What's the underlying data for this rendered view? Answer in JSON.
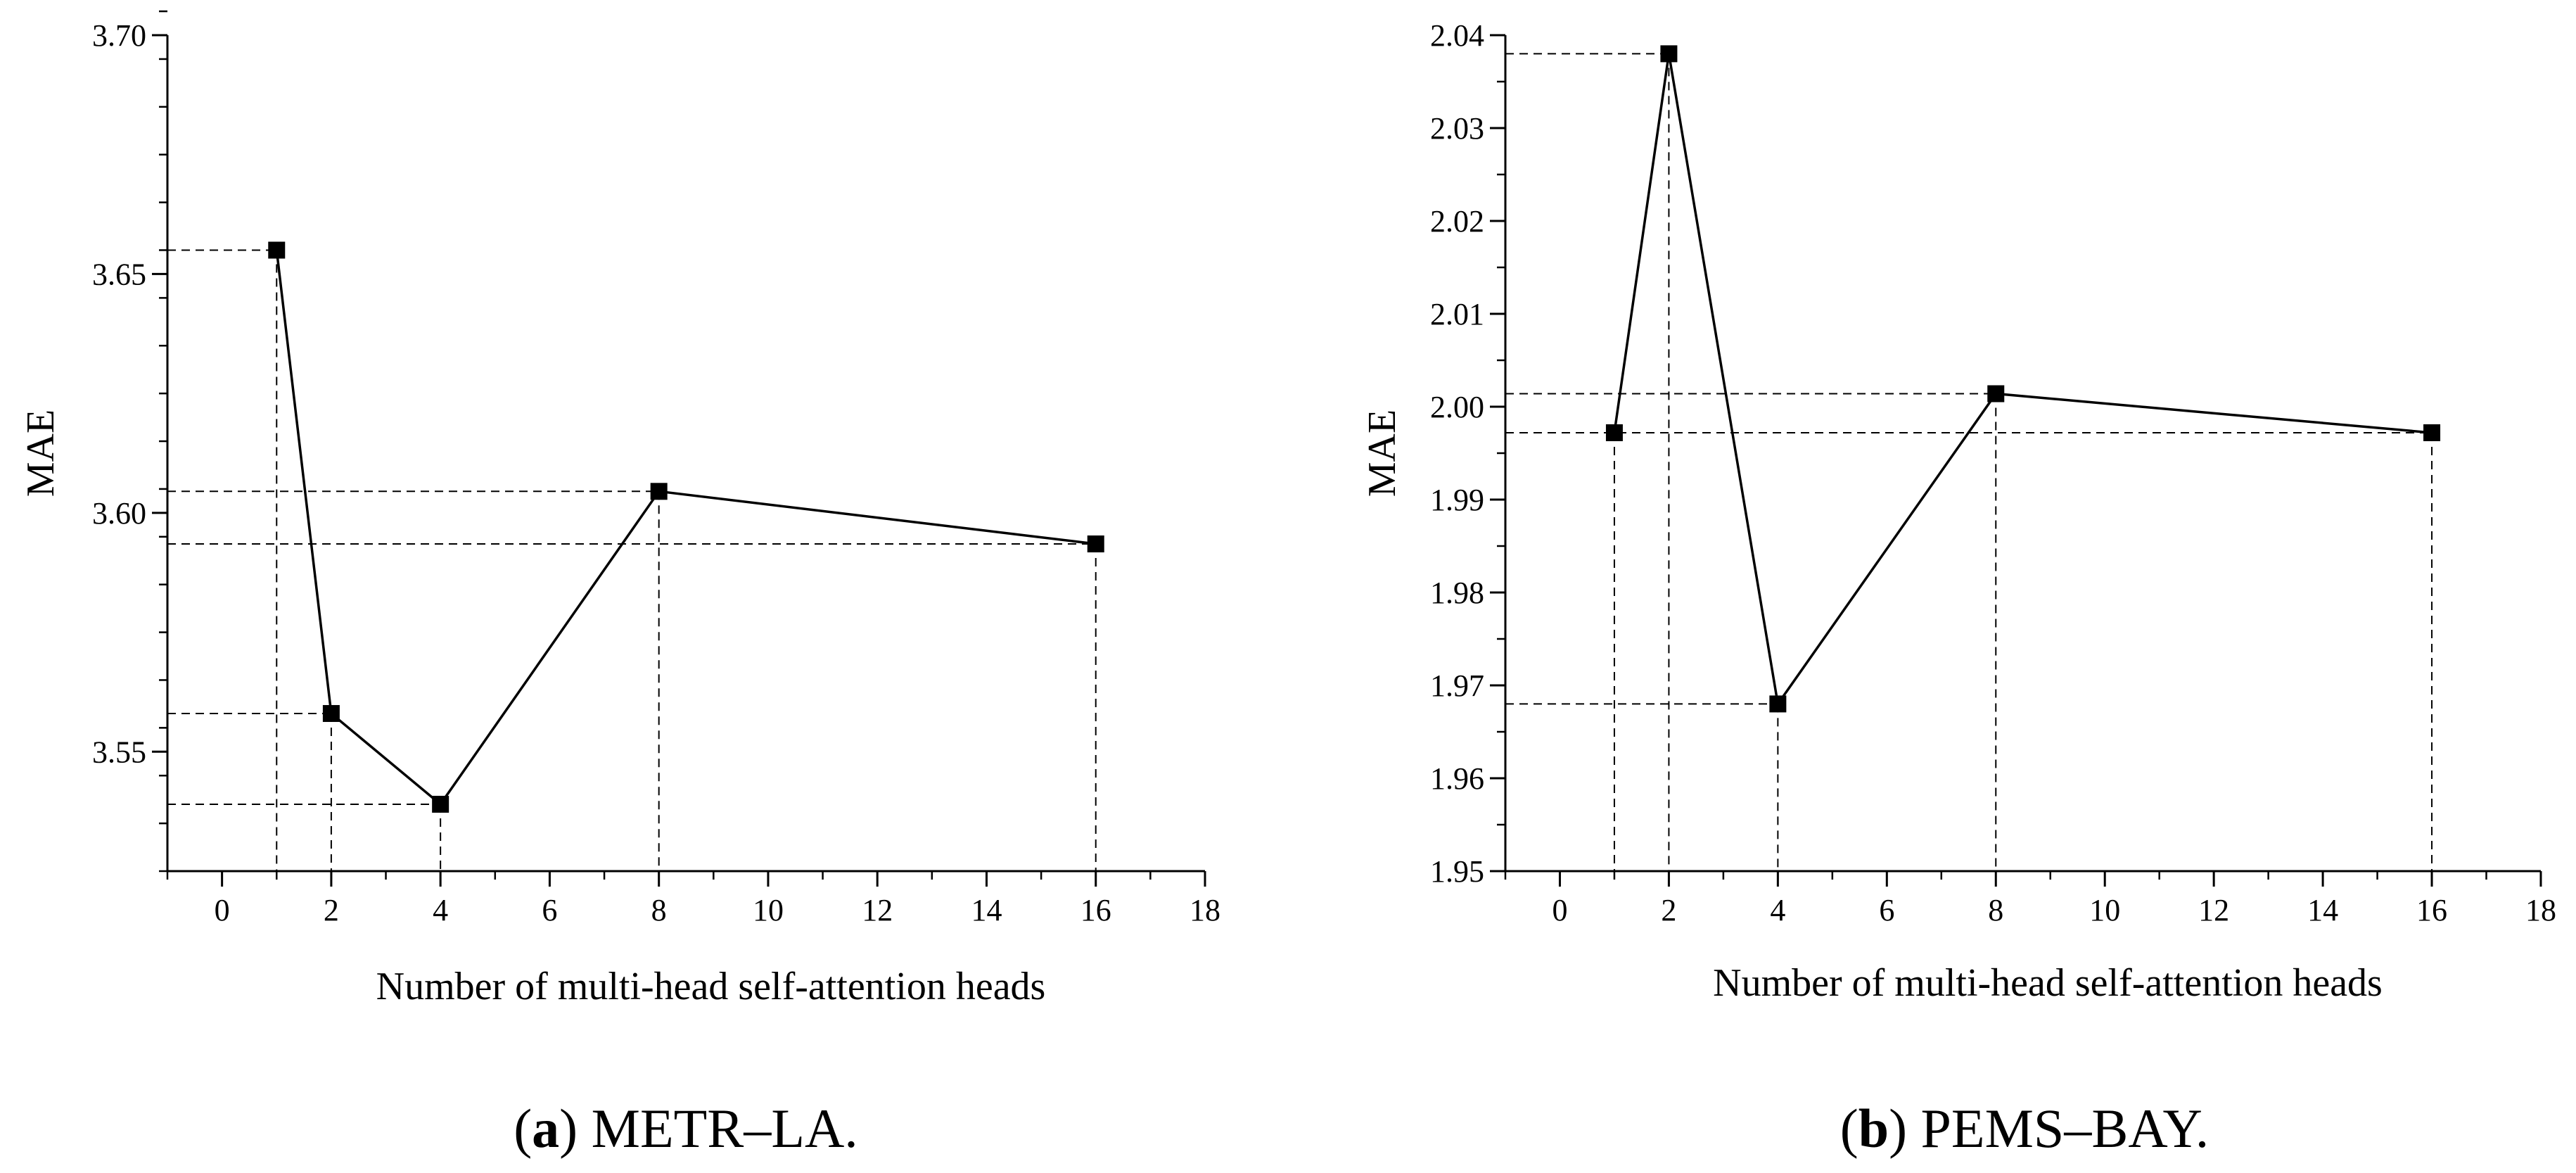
{
  "chart_data": [
    {
      "type": "line",
      "panel_letter": "a",
      "caption": "METR–LA.",
      "xlabel": "Number of multi-head self-attention heads",
      "ylabel": "MAE",
      "xlim": [
        -1,
        18
      ],
      "ylim": [
        3.525,
        3.7
      ],
      "xticks": [
        0,
        2,
        4,
        6,
        8,
        10,
        12,
        14,
        16,
        18
      ],
      "xtick_labels": [
        "0",
        "2",
        "4",
        "6",
        "8",
        "10",
        "12",
        "14",
        "16",
        "18"
      ],
      "yticks": [
        3.55,
        3.6,
        3.65,
        3.7
      ],
      "ytick_labels": [
        "3.55",
        "3.60",
        "3.65",
        "3.70"
      ],
      "y_minor_step": 0.01,
      "x_minor_step": 1,
      "series": [
        {
          "name": "MAE",
          "x": [
            1,
            2,
            4,
            8,
            16
          ],
          "y": [
            3.655,
            3.558,
            3.539,
            3.6045,
            3.5935
          ]
        }
      ],
      "guide_lines": true,
      "marker": "square"
    },
    {
      "type": "line",
      "panel_letter": "b",
      "caption": "PEMS–BAY.",
      "xlabel": "Number of multi-head self-attention heads",
      "ylabel": "MAE",
      "xlim": [
        -1,
        18
      ],
      "ylim": [
        1.95,
        2.04
      ],
      "xticks": [
        0,
        2,
        4,
        6,
        8,
        10,
        12,
        14,
        16,
        18
      ],
      "xtick_labels": [
        "0",
        "2",
        "4",
        "6",
        "8",
        "10",
        "12",
        "14",
        "16",
        "18"
      ],
      "yticks": [
        1.95,
        1.96,
        1.97,
        1.98,
        1.99,
        2.0,
        2.01,
        2.02,
        2.03,
        2.04
      ],
      "ytick_labels": [
        "1.95",
        "1.96",
        "1.97",
        "1.98",
        "1.99",
        "2.00",
        "2.01",
        "2.02",
        "2.03",
        "2.04"
      ],
      "y_minor_step": 0.005,
      "x_minor_step": 1,
      "series": [
        {
          "name": "MAE",
          "x": [
            1,
            2,
            4,
            8,
            16
          ],
          "y": [
            1.9972,
            2.038,
            1.968,
            2.0014,
            1.9972
          ]
        }
      ],
      "guide_lines": true,
      "marker": "square"
    }
  ]
}
